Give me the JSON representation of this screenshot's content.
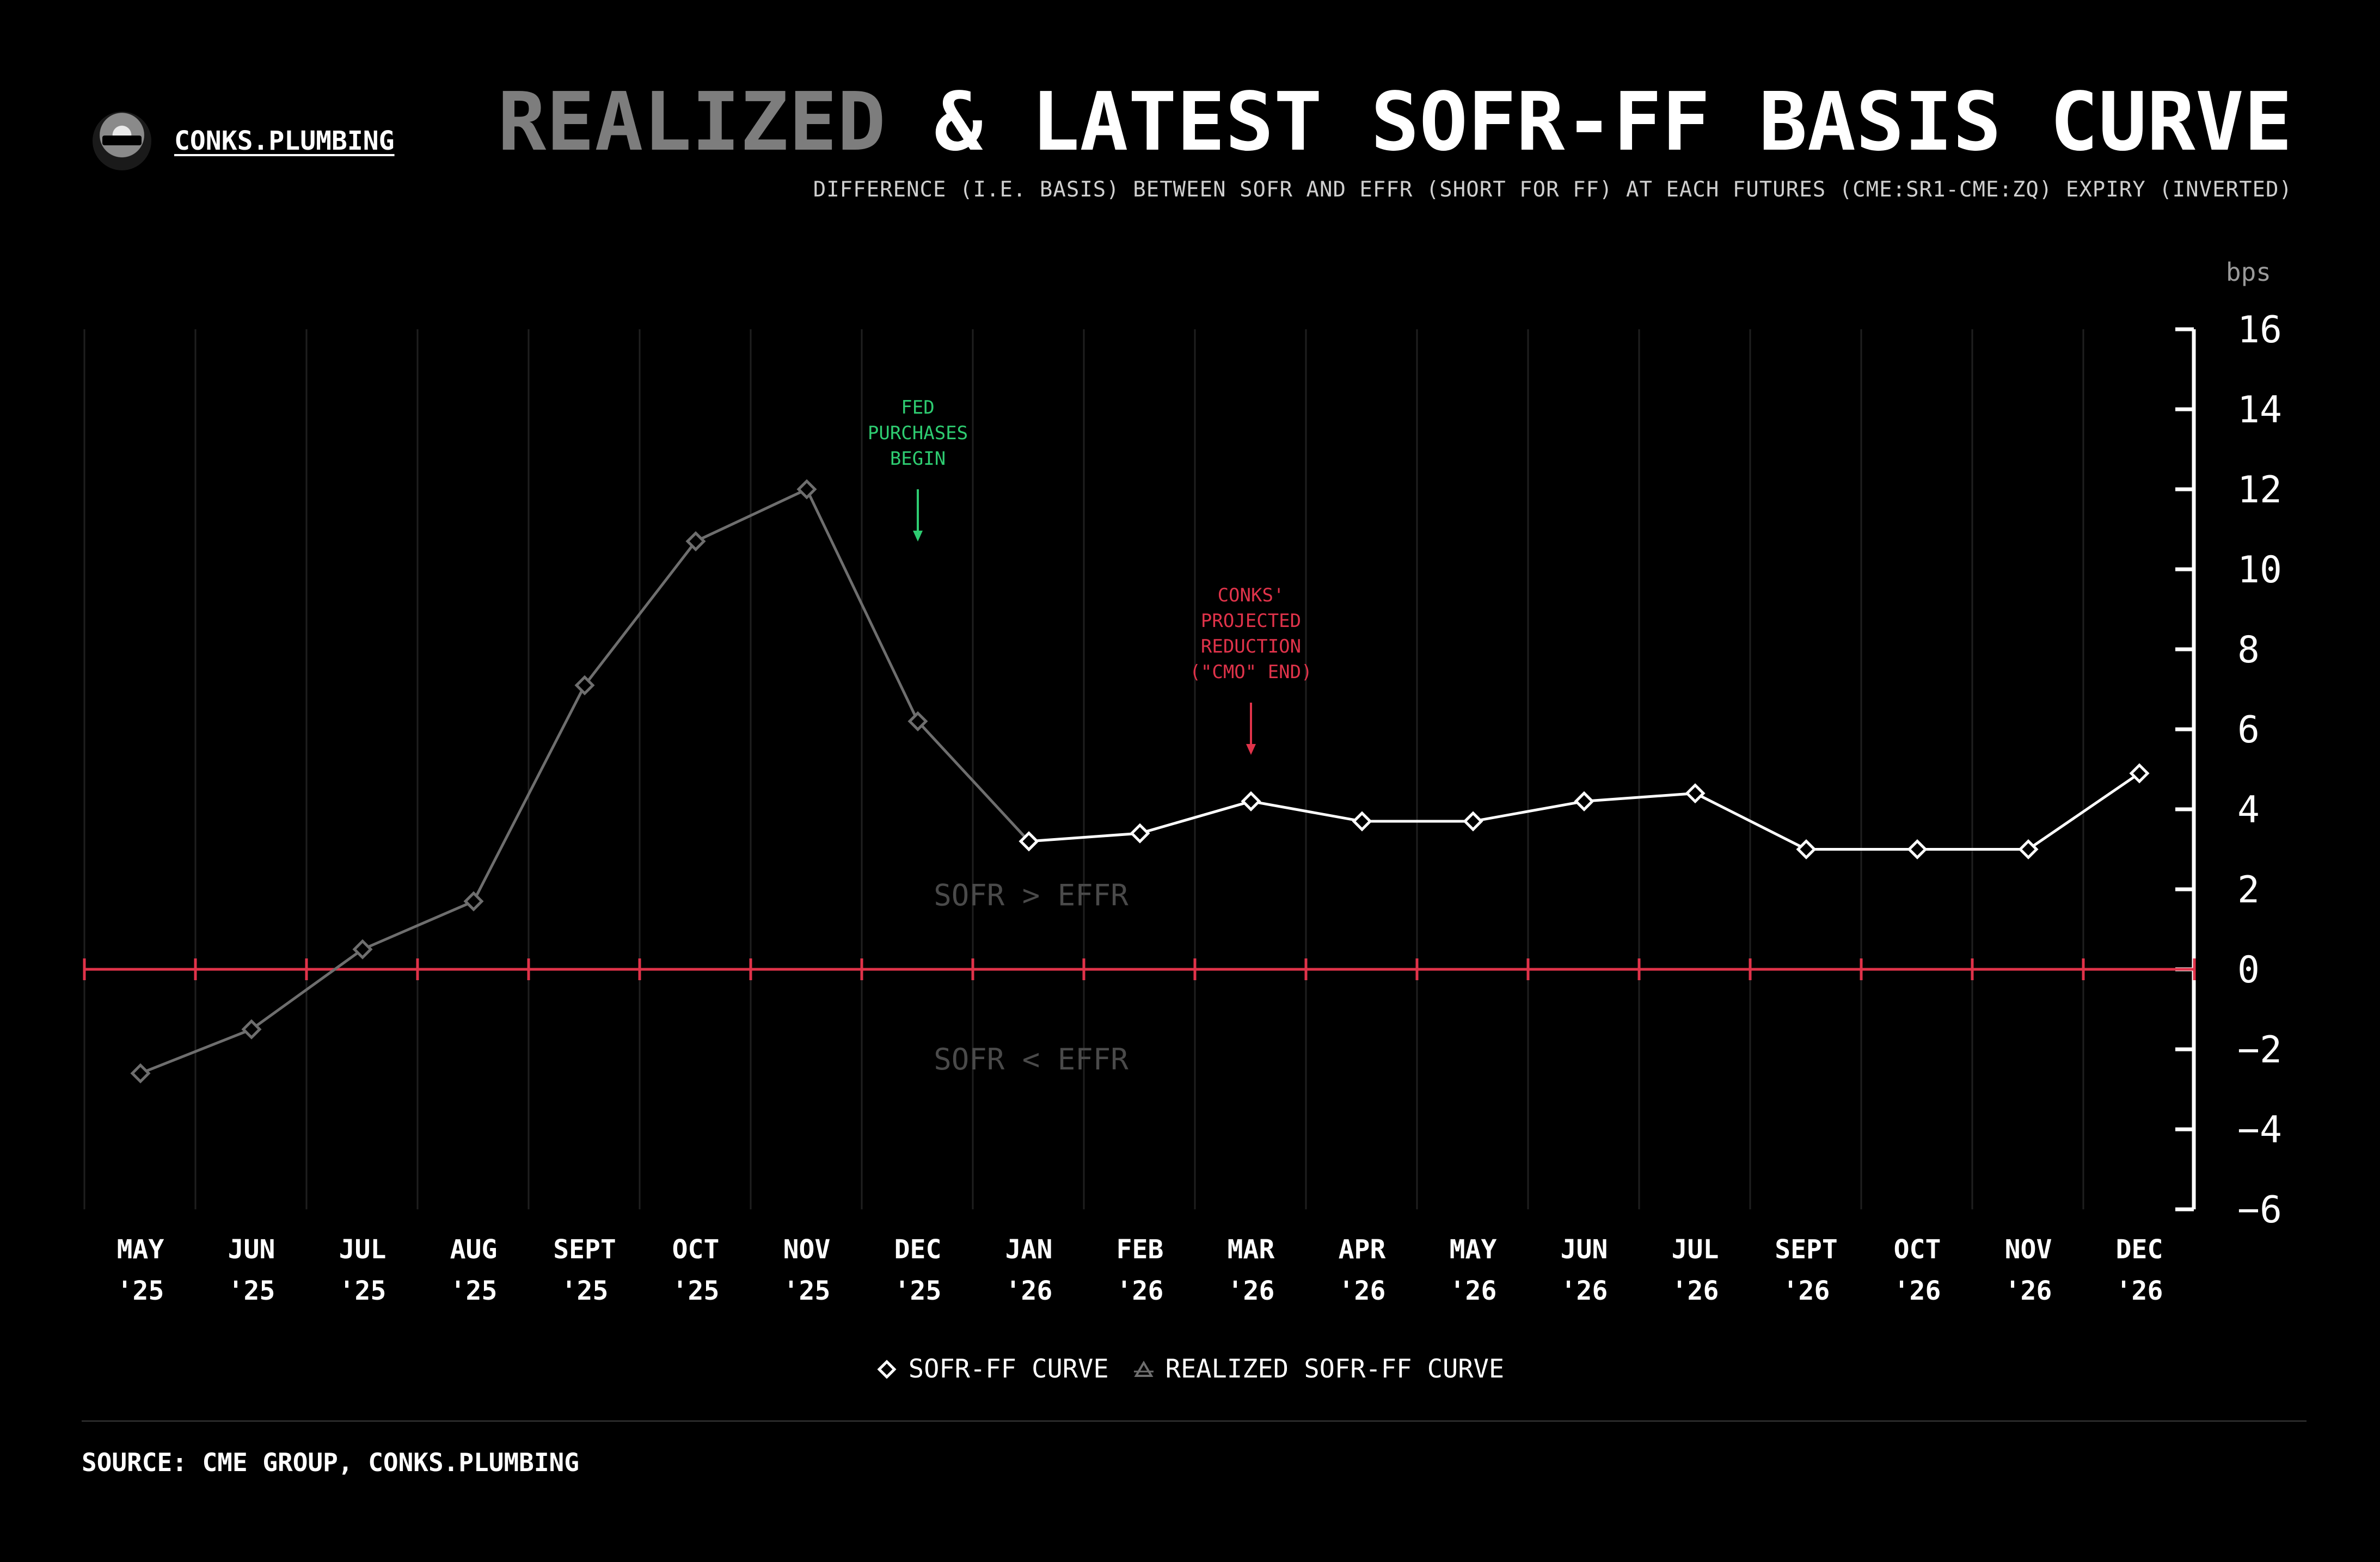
{
  "header": {
    "brand": "CONKS.PLUMBING",
    "title_dim": "REALIZED",
    "title_rest": "& LATEST SOFR-FF BASIS CURVE",
    "subtitle": "DIFFERENCE (I.E. BASIS) BETWEEN SOFR AND EFFR (SHORT FOR FF) AT EACH FUTURES (CME:SR1-CME:ZQ) EXPIRY (INVERTED)"
  },
  "colors": {
    "background": "#000000",
    "latest": "#ffffff",
    "realized": "#6e6e6e",
    "zero_line": "#e0334a",
    "fed_annotation": "#2ecc71",
    "conks_annotation": "#e0334a",
    "region_label": "#4a4a4a",
    "grid": "#1f1f1f"
  },
  "chart_data": {
    "type": "line",
    "unit_label": "bps",
    "ylim": [
      -6,
      16
    ],
    "yticks": [
      16,
      14,
      12,
      10,
      8,
      6,
      4,
      2,
      0,
      -2,
      -4,
      -6
    ],
    "y_tick_labels": [
      "16",
      "14",
      "12",
      "10",
      "8",
      "6",
      "4",
      "2",
      "0",
      "−2",
      "−4",
      "−6"
    ],
    "categories": [
      {
        "month": "MAY",
        "year": "'25"
      },
      {
        "month": "JUN",
        "year": "'25"
      },
      {
        "month": "JUL",
        "year": "'25"
      },
      {
        "month": "AUG",
        "year": "'25"
      },
      {
        "month": "SEPT",
        "year": "'25"
      },
      {
        "month": "OCT",
        "year": "'25"
      },
      {
        "month": "NOV",
        "year": "'25"
      },
      {
        "month": "DEC",
        "year": "'25"
      },
      {
        "month": "JAN",
        "year": "'26"
      },
      {
        "month": "FEB",
        "year": "'26"
      },
      {
        "month": "MAR",
        "year": "'26"
      },
      {
        "month": "APR",
        "year": "'26"
      },
      {
        "month": "MAY",
        "year": "'26"
      },
      {
        "month": "JUN",
        "year": "'26"
      },
      {
        "month": "JUL",
        "year": "'26"
      },
      {
        "month": "SEPT",
        "year": "'26"
      },
      {
        "month": "OCT",
        "year": "'26"
      },
      {
        "month": "NOV",
        "year": "'26"
      },
      {
        "month": "DEC",
        "year": "'26"
      }
    ],
    "series": [
      {
        "name": "REALIZED SOFR-FF CURVE",
        "values": [
          -2.6,
          -1.5,
          0.5,
          1.7,
          7.1,
          10.7,
          12.0,
          6.2,
          3.2,
          null,
          null,
          null,
          null,
          null,
          null,
          null,
          null,
          null,
          null
        ]
      },
      {
        "name": "SOFR-FF CURVE",
        "values": [
          null,
          null,
          null,
          null,
          null,
          null,
          null,
          null,
          3.2,
          3.4,
          4.2,
          3.7,
          3.7,
          4.2,
          4.4,
          3.0,
          3.0,
          3.0,
          4.9
        ]
      }
    ],
    "region_labels": {
      "above": "SOFR > EFFR",
      "below": "SOFR < EFFR"
    },
    "annotations": [
      {
        "lines": [
          "FED",
          "PURCHASES",
          "BEGIN"
        ],
        "category": "DEC '25",
        "color_key": "fed_annotation"
      },
      {
        "lines": [
          "CONKS'",
          "PROJECTED",
          "REDUCTION",
          "(\"CMO\" END)"
        ],
        "category": "MAR '26",
        "color_key": "conks_annotation"
      }
    ],
    "grid": true,
    "legend_position": "bottom-center"
  },
  "legend": {
    "items": [
      {
        "label": "SOFR-FF CURVE",
        "marker": "diamond"
      },
      {
        "label": "REALIZED SOFR-FF CURVE",
        "marker": "triangle"
      }
    ]
  },
  "footer": {
    "source": "SOURCE: CME GROUP, CONKS.PLUMBING"
  }
}
